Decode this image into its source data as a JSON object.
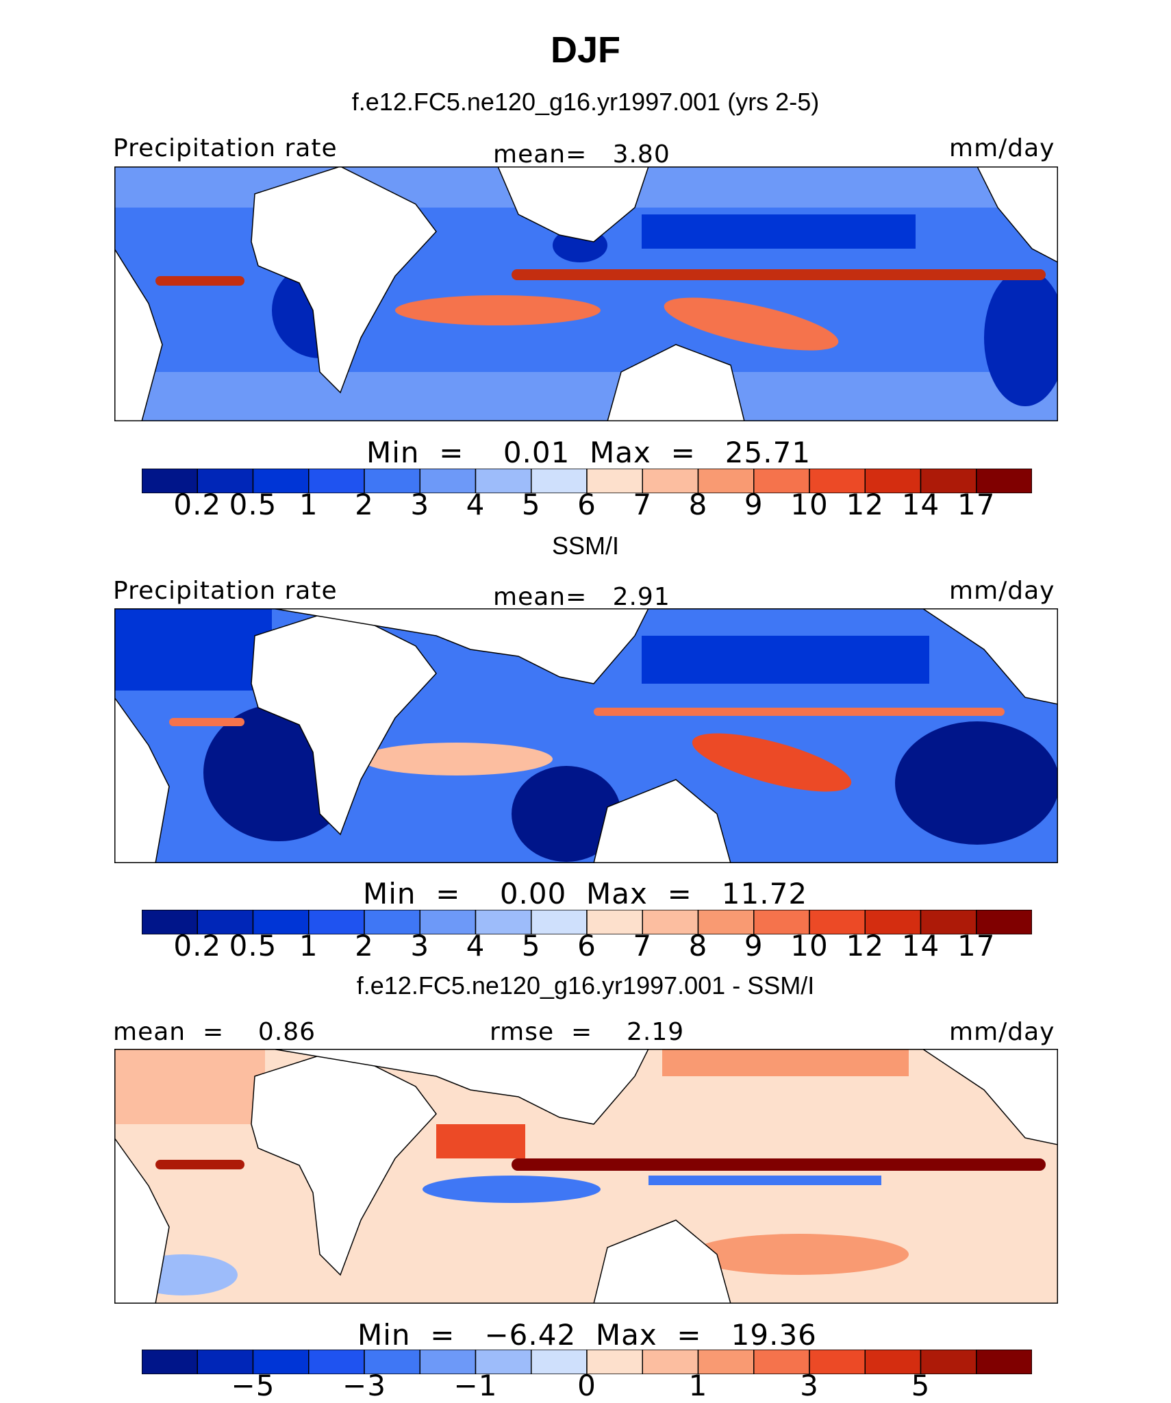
{
  "figure": {
    "title": "DJF",
    "precip_colors": [
      "#00158a",
      "#0026b8",
      "#0035d6",
      "#1f53f0",
      "#3f77f5",
      "#6d99f8",
      "#9dbcfa",
      "#cfe0fc",
      "#fde0cc",
      "#fcbea0",
      "#f99a72",
      "#f5734c",
      "#ec4a26",
      "#d42d10",
      "#ad1a08",
      "#800000"
    ],
    "precip_ticks": [
      "0.2",
      "0.5",
      "1",
      "2",
      "3",
      "4",
      "5",
      "6",
      "7",
      "8",
      "9",
      "10",
      "12",
      "14",
      "17"
    ],
    "diff_colors": [
      "#00158a",
      "#0026b8",
      "#0035d6",
      "#1f53f0",
      "#3f77f5",
      "#6d99f8",
      "#9dbcfa",
      "#cfe0fc",
      "#fde0cc",
      "#fcbea0",
      "#f99a72",
      "#f5734c",
      "#ec4a26",
      "#d42d10",
      "#ad1a08",
      "#800000"
    ],
    "diff_ticks": [
      {
        "label": "−5",
        "boundary": 2
      },
      {
        "label": "−3",
        "boundary": 4
      },
      {
        "label": "−1",
        "boundary": 6
      },
      {
        "label": "0",
        "boundary": 8
      },
      {
        "label": "1",
        "boundary": 10
      },
      {
        "label": "3",
        "boundary": 12
      },
      {
        "label": "5",
        "boundary": 14
      }
    ]
  },
  "panels": [
    {
      "subtitle": "f.e12.FC5.ne120_g16.yr1997.001 (yrs 2-5)",
      "left_label": "Precipitation rate",
      "center_label": "mean=   3.80",
      "right_label": "mm/day",
      "minmax": "Min  =    0.01  Max  =   25.71",
      "itcz_color": "#c42e10",
      "spcz_color": "#f5734c"
    },
    {
      "subtitle": "SSM/I",
      "left_label": "Precipitation rate",
      "center_label": "mean=   2.91",
      "right_label": "mm/day",
      "minmax": "Min  =    0.00  Max  =   11.72",
      "itcz_color": "#f5734c",
      "spcz_color": "#ec4a26"
    },
    {
      "subtitle": "f.e12.FC5.ne120_g16.yr1997.001 - SSM/I",
      "left_label": "mean  =    0.86",
      "center_label": "rmse  =    2.19",
      "right_label": "mm/day",
      "minmax": "Min  =   −6.42  Max  =   19.36"
    }
  ],
  "chart_data": [
    {
      "type": "heatmap",
      "title": "f.e12.FC5.ne120_g16.yr1997.001 (yrs 2-5)",
      "variable": "Precipitation rate",
      "units": "mm/day",
      "mean": 3.8,
      "min": 0.01,
      "max": 25.71,
      "levels": [
        0.2,
        0.5,
        1,
        2,
        3,
        4,
        5,
        6,
        7,
        8,
        9,
        10,
        12,
        14,
        17
      ],
      "lon_range": [
        0,
        360
      ],
      "lat_range": [
        -40,
        40
      ]
    },
    {
      "type": "heatmap",
      "title": "SSM/I",
      "variable": "Precipitation rate",
      "units": "mm/day",
      "mean": 2.91,
      "min": 0.0,
      "max": 11.72,
      "levels": [
        0.2,
        0.5,
        1,
        2,
        3,
        4,
        5,
        6,
        7,
        8,
        9,
        10,
        12,
        14,
        17
      ],
      "lon_range": [
        0,
        360
      ],
      "lat_range": [
        -40,
        40
      ]
    },
    {
      "type": "heatmap",
      "title": "f.e12.FC5.ne120_g16.yr1997.001 - SSM/I",
      "units": "mm/day",
      "mean": 0.86,
      "rmse": 2.19,
      "min": -6.42,
      "max": 19.36,
      "levels": [
        -6,
        -5,
        -4,
        -3,
        -2,
        -1,
        -0.5,
        0,
        0.5,
        1,
        2,
        3,
        4,
        5,
        6
      ],
      "lon_range": [
        0,
        360
      ],
      "lat_range": [
        -40,
        40
      ]
    }
  ]
}
